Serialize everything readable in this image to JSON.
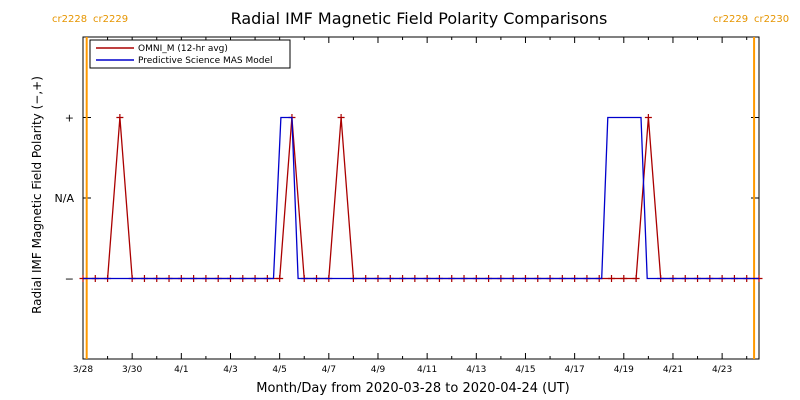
{
  "chart_data": {
    "type": "line",
    "title": "Radial IMF Magnetic Field Polarity Comparisons",
    "xlabel": "Month/Day from 2020-03-28 to 2020-04-24 (UT)",
    "ylabel": "Radial IMF Magnetic Field Polarity (−,+)",
    "x_ticks": [
      "3/28",
      "3/30",
      "4/1",
      "4/3",
      "4/5",
      "4/7",
      "4/9",
      "4/11",
      "4/13",
      "4/15",
      "4/17",
      "4/19",
      "4/21",
      "4/23"
    ],
    "x_tick_days": [
      0,
      2,
      4,
      6,
      8,
      10,
      12,
      14,
      16,
      18,
      20,
      22,
      24,
      26
    ],
    "xlim": [
      0,
      27.5
    ],
    "y_ticks": [
      "−",
      "N/A",
      "+"
    ],
    "y_tick_values": [
      -1,
      0,
      1
    ],
    "ylim": [
      -2,
      2
    ],
    "carrington": [
      {
        "day": 0.15,
        "left": "cr2228",
        "right": "cr2229"
      },
      {
        "day": 27.3,
        "left": "cr2229",
        "right": "cr2230"
      }
    ],
    "legend": {
      "placement": "top-left",
      "entries": [
        "OMNI_M (12-hr avg)",
        "Predictive Science MAS Model"
      ]
    },
    "series": [
      {
        "name": "OMNI_M (12-hr avg)",
        "color": "#aa0000",
        "markers": "plus",
        "x": [
          0,
          0.5,
          1,
          1.5,
          2,
          2.5,
          3,
          3.5,
          4,
          4.5,
          5,
          5.5,
          6,
          6.5,
          7,
          7.5,
          8,
          8.5,
          9,
          9.5,
          10,
          10.5,
          11,
          11.5,
          12,
          12.5,
          13,
          13.5,
          14,
          14.5,
          15,
          15.5,
          16,
          16.5,
          17,
          17.5,
          18,
          18.5,
          19,
          19.5,
          20,
          20.5,
          21,
          21.5,
          22,
          22.5,
          23,
          23.5,
          24,
          24.5,
          25,
          25.5,
          26,
          26.5,
          27,
          27.5
        ],
        "y": [
          -1,
          -1,
          -1,
          1,
          -1,
          -1,
          -1,
          -1,
          -1,
          -1,
          -1,
          -1,
          -1,
          -1,
          -1,
          -1,
          -1,
          1,
          -1,
          -1,
          -1,
          1,
          -1,
          -1,
          -1,
          -1,
          -1,
          -1,
          -1,
          -1,
          -1,
          -1,
          -1,
          -1,
          -1,
          -1,
          -1,
          -1,
          -1,
          -1,
          -1,
          -1,
          -1,
          -1,
          -1,
          -1,
          1,
          -1,
          -1,
          -1,
          -1,
          -1,
          -1,
          -1,
          -1,
          -1
        ]
      },
      {
        "name": "Predictive Science MAS Model",
        "color": "#0000cc",
        "markers": "none",
        "x": [
          0,
          7.75,
          8.05,
          8.5,
          8.75,
          21.1,
          21.35,
          22.7,
          22.95,
          27.5
        ],
        "y": [
          -1,
          -1,
          1,
          1,
          -1,
          -1,
          1,
          1,
          -1,
          -1
        ]
      }
    ],
    "colors": {
      "carrington_line": "#ff9900",
      "carrington_label": "#e69500",
      "axes": "#000000"
    }
  }
}
